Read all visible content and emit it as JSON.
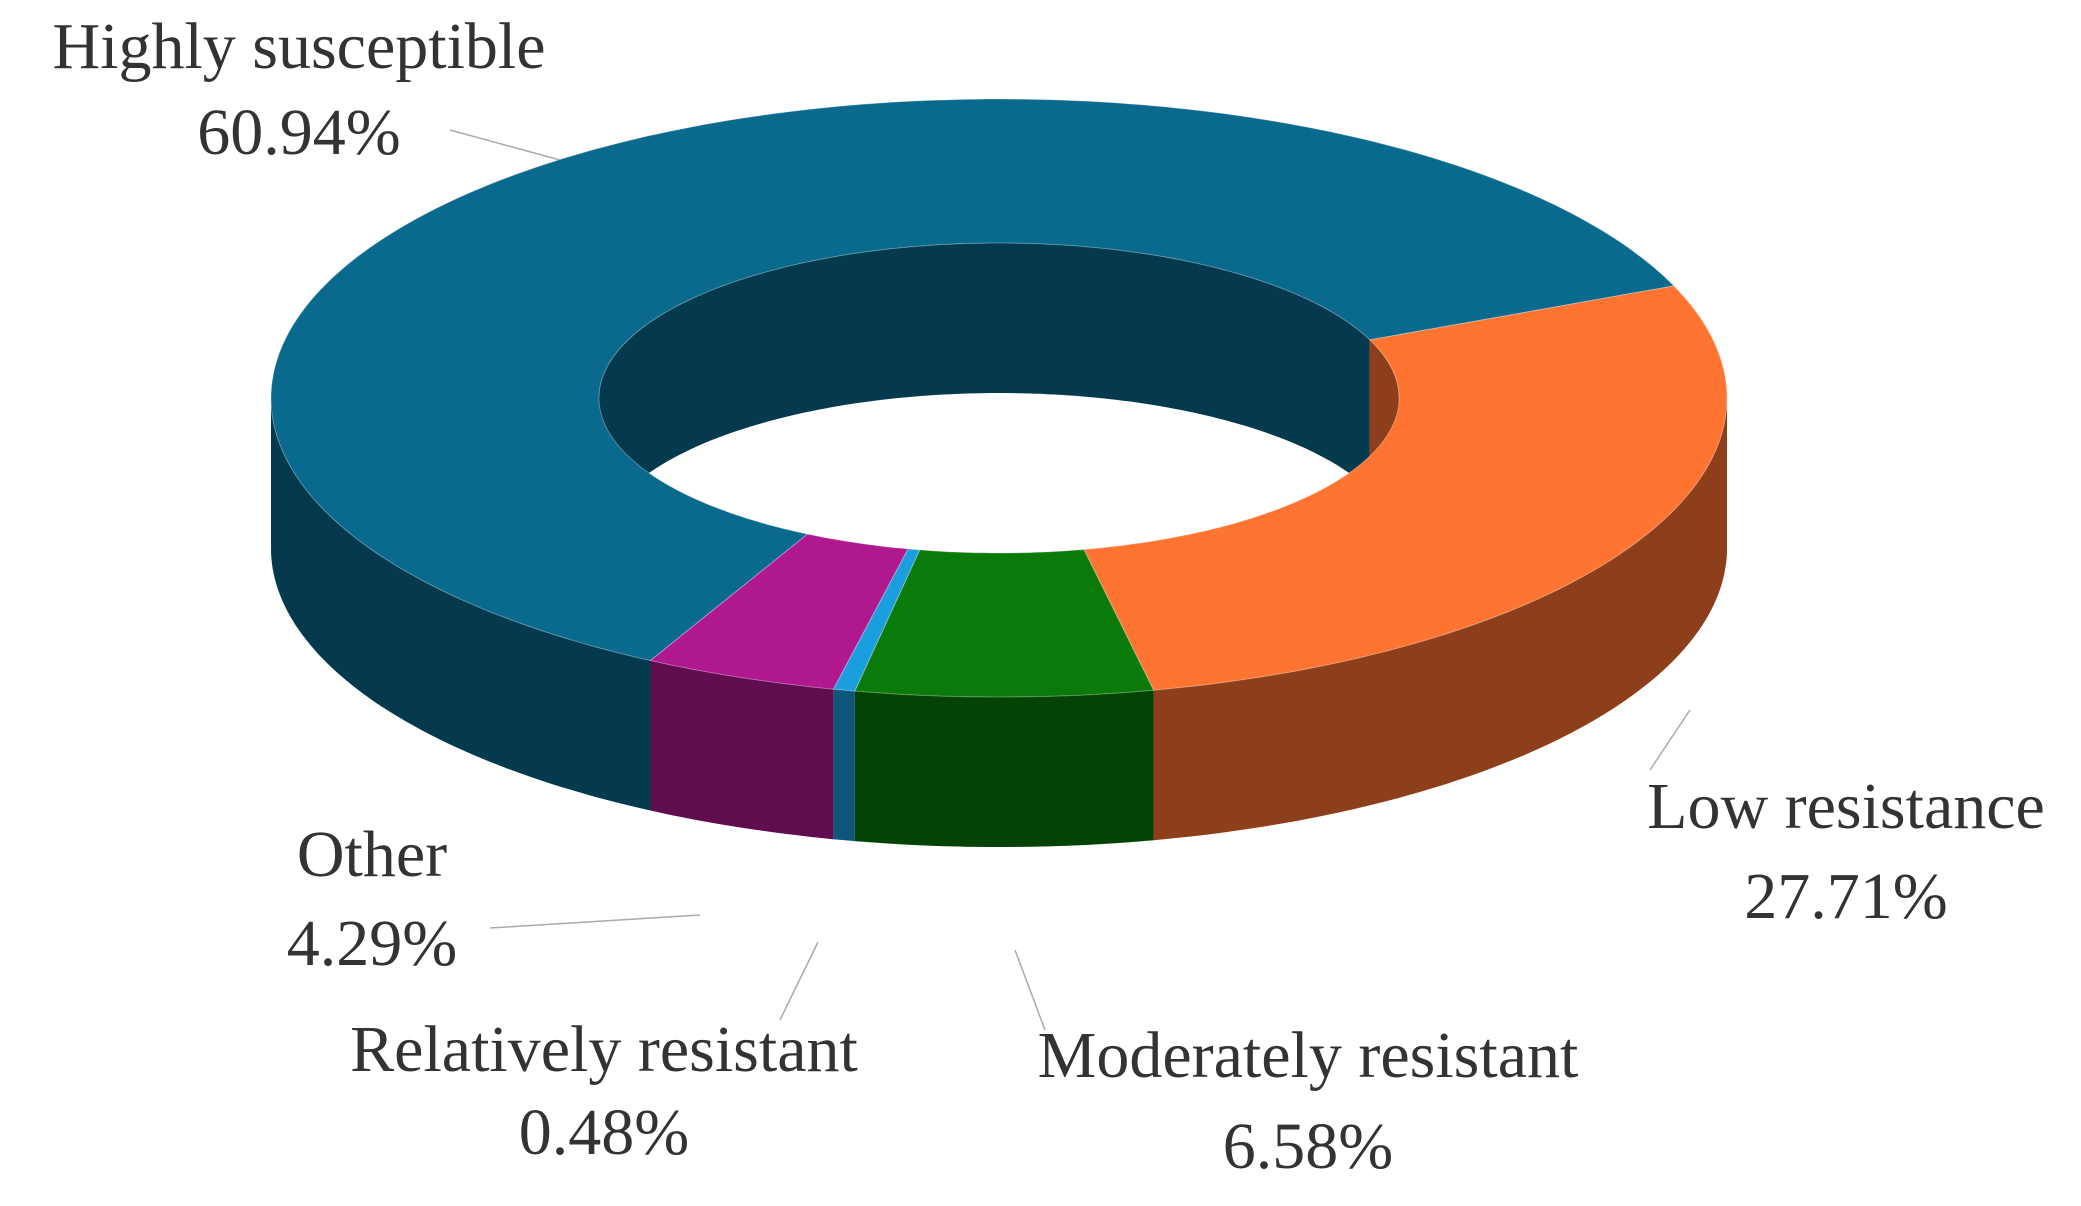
{
  "chart_data": {
    "type": "donut3d",
    "categories": [
      "Highly susceptible",
      "Low resistance",
      "Moderately resistant",
      "Relatively resistant",
      "Other"
    ],
    "values": [
      60.94,
      27.71,
      6.58,
      0.48,
      4.29
    ],
    "value_labels": [
      "60.94%",
      "27.71%",
      "6.58%",
      "0.48%",
      "4.29%"
    ],
    "colors": [
      "#0a6a8e",
      "#ff7430",
      "#0a7a0a",
      "#1a9ede",
      "#b01890"
    ]
  }
}
